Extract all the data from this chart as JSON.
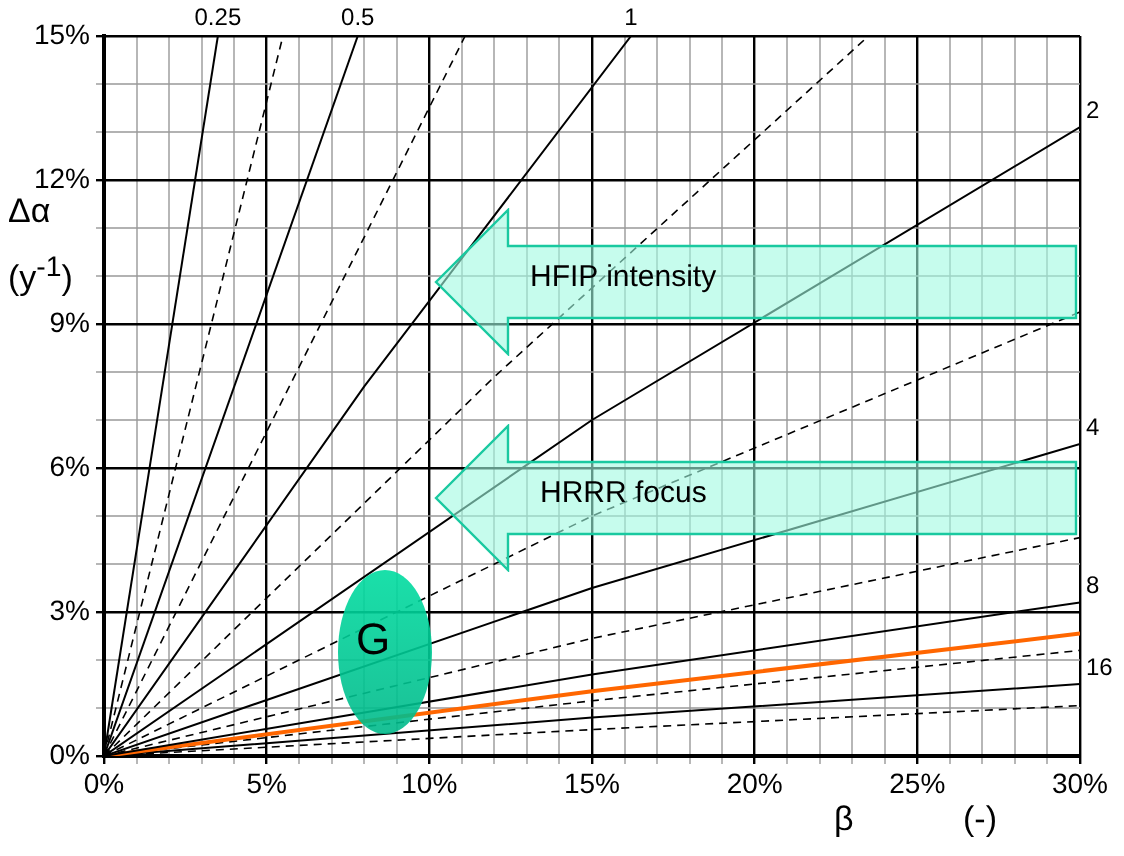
{
  "chart_data": {
    "type": "line",
    "xlabel": "β (-)",
    "ylabel": "Δα (y$^{-1}$)",
    "xlim": [
      0,
      30
    ],
    "ylim": [
      0,
      15
    ],
    "xticks": [
      {
        "value": 0,
        "label": "0%"
      },
      {
        "value": 1,
        "label": null
      },
      {
        "value": 2,
        "label": null
      },
      {
        "value": 3,
        "label": null
      },
      {
        "value": 4,
        "label": null
      },
      {
        "value": 5,
        "label": "5%"
      },
      {
        "value": 6,
        "label": null
      },
      {
        "value": 7,
        "label": null
      },
      {
        "value": 8,
        "label": null
      },
      {
        "value": 9,
        "label": null
      },
      {
        "value": 10,
        "label": "10%"
      },
      {
        "value": 11,
        "label": null
      },
      {
        "value": 12,
        "label": null
      },
      {
        "value": 13,
        "label": null
      },
      {
        "value": 14,
        "label": null
      },
      {
        "value": 15,
        "label": "15%"
      },
      {
        "value": 16,
        "label": null
      },
      {
        "value": 17,
        "label": null
      },
      {
        "value": 18,
        "label": null
      },
      {
        "value": 19,
        "label": null
      },
      {
        "value": 20,
        "label": "20%"
      },
      {
        "value": 21,
        "label": null
      },
      {
        "value": 22,
        "label": null
      },
      {
        "value": 23,
        "label": null
      },
      {
        "value": 24,
        "label": null
      },
      {
        "value": 25,
        "label": "25%"
      },
      {
        "value": 26,
        "label": null
      },
      {
        "value": 27,
        "label": null
      },
      {
        "value": 28,
        "label": null
      },
      {
        "value": 29,
        "label": null
      },
      {
        "value": 30,
        "label": "30%"
      }
    ],
    "yticks": [
      {
        "value": 0,
        "label": "0%"
      },
      {
        "value": 1,
        "label": null
      },
      {
        "value": 2,
        "label": null
      },
      {
        "value": 3,
        "label": "3%"
      },
      {
        "value": 4,
        "label": null
      },
      {
        "value": 5,
        "label": null
      },
      {
        "value": 6,
        "label": "6%"
      },
      {
        "value": 7,
        "label": null
      },
      {
        "value": 8,
        "label": null
      },
      {
        "value": 9,
        "label": "9%"
      },
      {
        "value": 10,
        "label": null
      },
      {
        "value": 11,
        "label": null
      },
      {
        "value": 12,
        "label": "12%"
      },
      {
        "value": 13,
        "label": null
      },
      {
        "value": 14,
        "label": null
      },
      {
        "value": 15,
        "label": "15%"
      }
    ],
    "grid": true,
    "legend": false,
    "marker": "none",
    "series": [
      {
        "name": "0.25",
        "color": "#000000",
        "line_style": "solid",
        "x": [
          0,
          3.5
        ],
        "values": [
          0,
          15
        ]
      },
      {
        "color": "#000000",
        "line_style": "dashed",
        "x": [
          0,
          5.5
        ],
        "values": [
          0,
          15
        ]
      },
      {
        "name": "0.5",
        "color": "#000000",
        "line_style": "solid",
        "x": [
          0,
          7.8
        ],
        "values": [
          0,
          15
        ]
      },
      {
        "color": "#000000",
        "line_style": "dashed",
        "x": [
          0,
          11.1
        ],
        "values": [
          0,
          15
        ]
      },
      {
        "name": "1",
        "color": "#000000",
        "line_style": "solid",
        "x": [
          0,
          8,
          16.2
        ],
        "values": [
          0,
          7.7,
          15
        ]
      },
      {
        "color": "#000000",
        "line_style": "dashed",
        "x": [
          0,
          12,
          23.5
        ],
        "values": [
          0,
          7.9,
          15
        ]
      },
      {
        "name": "2",
        "color": "#000000",
        "line_style": "solid",
        "x": [
          0,
          15,
          30
        ],
        "values": [
          0,
          7,
          13.1
        ]
      },
      {
        "color": "#000000",
        "line_style": "dashed",
        "x": [
          0,
          15,
          30
        ],
        "values": [
          0,
          5,
          9.25
        ]
      },
      {
        "name": "4",
        "color": "#000000",
        "line_style": "solid",
        "x": [
          0,
          15,
          30
        ],
        "values": [
          0,
          3.5,
          6.5
        ]
      },
      {
        "color": "#000000",
        "line_style": "dashed",
        "x": [
          0,
          15,
          30
        ],
        "values": [
          0,
          2.45,
          4.55
        ]
      },
      {
        "name": "8",
        "color": "#000000",
        "line_style": "solid",
        "x": [
          0,
          15,
          30
        ],
        "values": [
          0,
          1.7,
          3.2
        ]
      },
      {
        "color": "#ff6600",
        "line_style": "solid",
        "x": [
          0,
          15,
          30
        ],
        "values": [
          0,
          1.35,
          2.55
        ]
      },
      {
        "color": "#000000",
        "line_style": "dashed",
        "x": [
          0,
          15,
          30
        ],
        "values": [
          0,
          1.15,
          2.2
        ]
      },
      {
        "name": "16",
        "color": "#000000",
        "line_style": "solid",
        "x": [
          0,
          15,
          30
        ],
        "values": [
          0,
          0.8,
          1.5
        ]
      },
      {
        "color": "#000000",
        "line_style": "dashed",
        "x": [
          0,
          15,
          30
        ],
        "values": [
          0,
          0.55,
          1.05
        ]
      }
    ],
    "annotations": [
      "G",
      "HFIP intensity",
      "HRRR focus"
    ]
  }
}
